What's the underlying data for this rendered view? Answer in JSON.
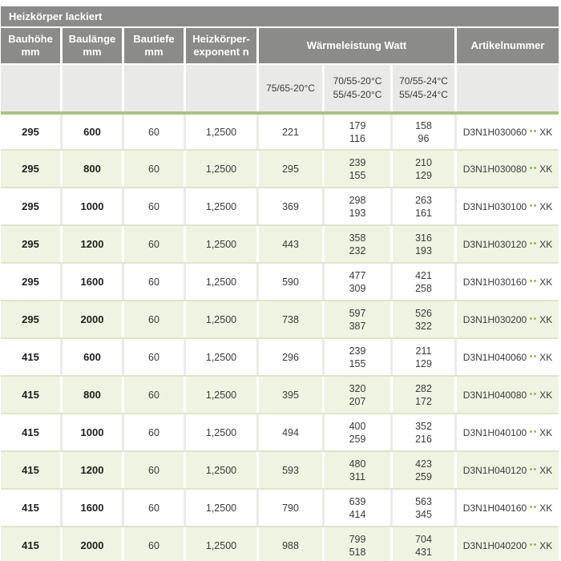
{
  "title": "Heizkörper lackiert",
  "columns": {
    "bauhoehe": "Bauhöhe\nmm",
    "baulaenge": "Baulänge\nmm",
    "bautiefe": "Bautiefe\nmm",
    "exponent": "Heizkörper-\nexponent n",
    "waermeleistung": "Wärmeleistung Watt",
    "artikelnummer": "Artikelnummer"
  },
  "subheaders": [
    "75/65-20°C",
    "70/55-20°C\n55/45-20°C",
    "70/55-24°C\n55/45-24°C"
  ],
  "rows": [
    {
      "bauhoehe": "295",
      "baulaenge": "600",
      "bautiefe": "60",
      "exponent": "1,2500",
      "w75": "221",
      "w70_20": "179\n116",
      "w70_24": "158\n96",
      "artikel": "D3N1H030060",
      "suffix": "XK"
    },
    {
      "bauhoehe": "295",
      "baulaenge": "800",
      "bautiefe": "60",
      "exponent": "1,2500",
      "w75": "295",
      "w70_20": "239\n155",
      "w70_24": "210\n129",
      "artikel": "D3N1H030080",
      "suffix": "XK"
    },
    {
      "bauhoehe": "295",
      "baulaenge": "1000",
      "bautiefe": "60",
      "exponent": "1,2500",
      "w75": "369",
      "w70_20": "298\n193",
      "w70_24": "263\n161",
      "artikel": "D3N1H030100",
      "suffix": "XK"
    },
    {
      "bauhoehe": "295",
      "baulaenge": "1200",
      "bautiefe": "60",
      "exponent": "1,2500",
      "w75": "443",
      "w70_20": "358\n232",
      "w70_24": "316\n193",
      "artikel": "D3N1H030120",
      "suffix": "XK"
    },
    {
      "bauhoehe": "295",
      "baulaenge": "1600",
      "bautiefe": "60",
      "exponent": "1,2500",
      "w75": "590",
      "w70_20": "477\n309",
      "w70_24": "421\n258",
      "artikel": "D3N1H030160",
      "suffix": "XK"
    },
    {
      "bauhoehe": "295",
      "baulaenge": "2000",
      "bautiefe": "60",
      "exponent": "1,2500",
      "w75": "738",
      "w70_20": "597\n387",
      "w70_24": "526\n322",
      "artikel": "D3N1H030200",
      "suffix": "XK"
    },
    {
      "bauhoehe": "415",
      "baulaenge": "600",
      "bautiefe": "60",
      "exponent": "1,2500",
      "w75": "296",
      "w70_20": "239\n155",
      "w70_24": "211\n129",
      "artikel": "D3N1H040060",
      "suffix": "XK"
    },
    {
      "bauhoehe": "415",
      "baulaenge": "800",
      "bautiefe": "60",
      "exponent": "1,2500",
      "w75": "395",
      "w70_20": "320\n207",
      "w70_24": "282\n172",
      "artikel": "D3N1H040080",
      "suffix": "XK"
    },
    {
      "bauhoehe": "415",
      "baulaenge": "1000",
      "bautiefe": "60",
      "exponent": "1,2500",
      "w75": "494",
      "w70_20": "400\n259",
      "w70_24": "352\n216",
      "artikel": "D3N1H040100",
      "suffix": "XK"
    },
    {
      "bauhoehe": "415",
      "baulaenge": "1200",
      "bautiefe": "60",
      "exponent": "1,2500",
      "w75": "593",
      "w70_20": "480\n311",
      "w70_24": "423\n259",
      "artikel": "D3N1H040120",
      "suffix": "XK"
    },
    {
      "bauhoehe": "415",
      "baulaenge": "1600",
      "bautiefe": "60",
      "exponent": "1,2500",
      "w75": "790",
      "w70_20": "639\n414",
      "w70_24": "563\n345",
      "artikel": "D3N1H040160",
      "suffix": "XK"
    },
    {
      "bauhoehe": "415",
      "baulaenge": "2000",
      "bautiefe": "60",
      "exponent": "1,2500",
      "w75": "988",
      "w70_20": "799\n518",
      "w70_24": "704\n431",
      "artikel": "D3N1H040200",
      "suffix": "XK"
    }
  ],
  "colors": {
    "header_bg": "#8b8b89",
    "subheader_bg": "#e9e9e7",
    "row_alt_bg": "#eff3e2",
    "accent_line": "#a7c57b",
    "dot_green": "#93bf4a",
    "bottom_line": "#161616"
  }
}
